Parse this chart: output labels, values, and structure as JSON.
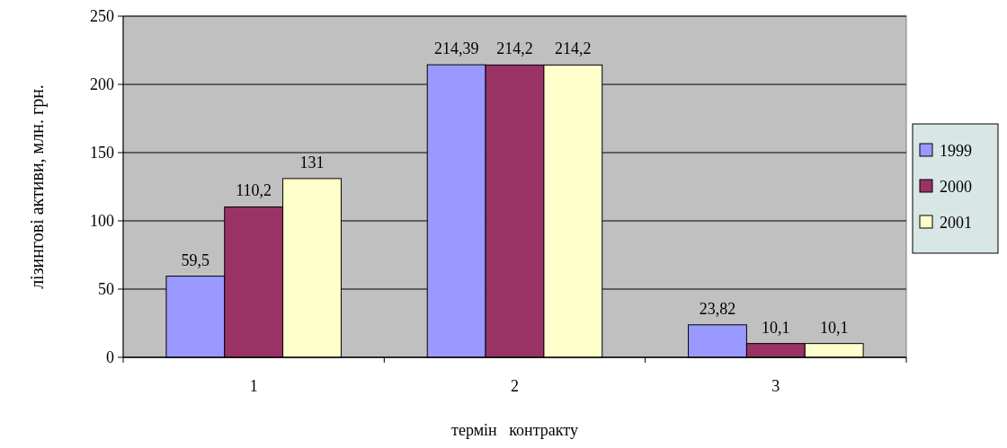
{
  "chart_data": {
    "type": "bar",
    "xlabel": "термін   контракту",
    "ylabel": "лізингові активи, млн. грн.",
    "categories": [
      "1",
      "2",
      "3"
    ],
    "series": [
      {
        "name": "1999",
        "color": "#9999ff",
        "values": [
          59.5,
          214.39,
          23.82
        ],
        "value_labels": [
          "59,5",
          "214,39",
          "23,82"
        ]
      },
      {
        "name": "2000",
        "color": "#993366",
        "values": [
          110.2,
          214.2,
          10.1
        ],
        "value_labels": [
          "110,2",
          "214,2",
          "10,1"
        ]
      },
      {
        "name": "2001",
        "color": "#ffffcc",
        "values": [
          131,
          214.2,
          10.1
        ],
        "value_labels": [
          "131",
          "214,2",
          "10,1"
        ]
      }
    ],
    "ylim": [
      0,
      250
    ],
    "yticks": [
      0,
      50,
      100,
      150,
      200,
      250
    ],
    "grid": "y",
    "legend": "right"
  }
}
